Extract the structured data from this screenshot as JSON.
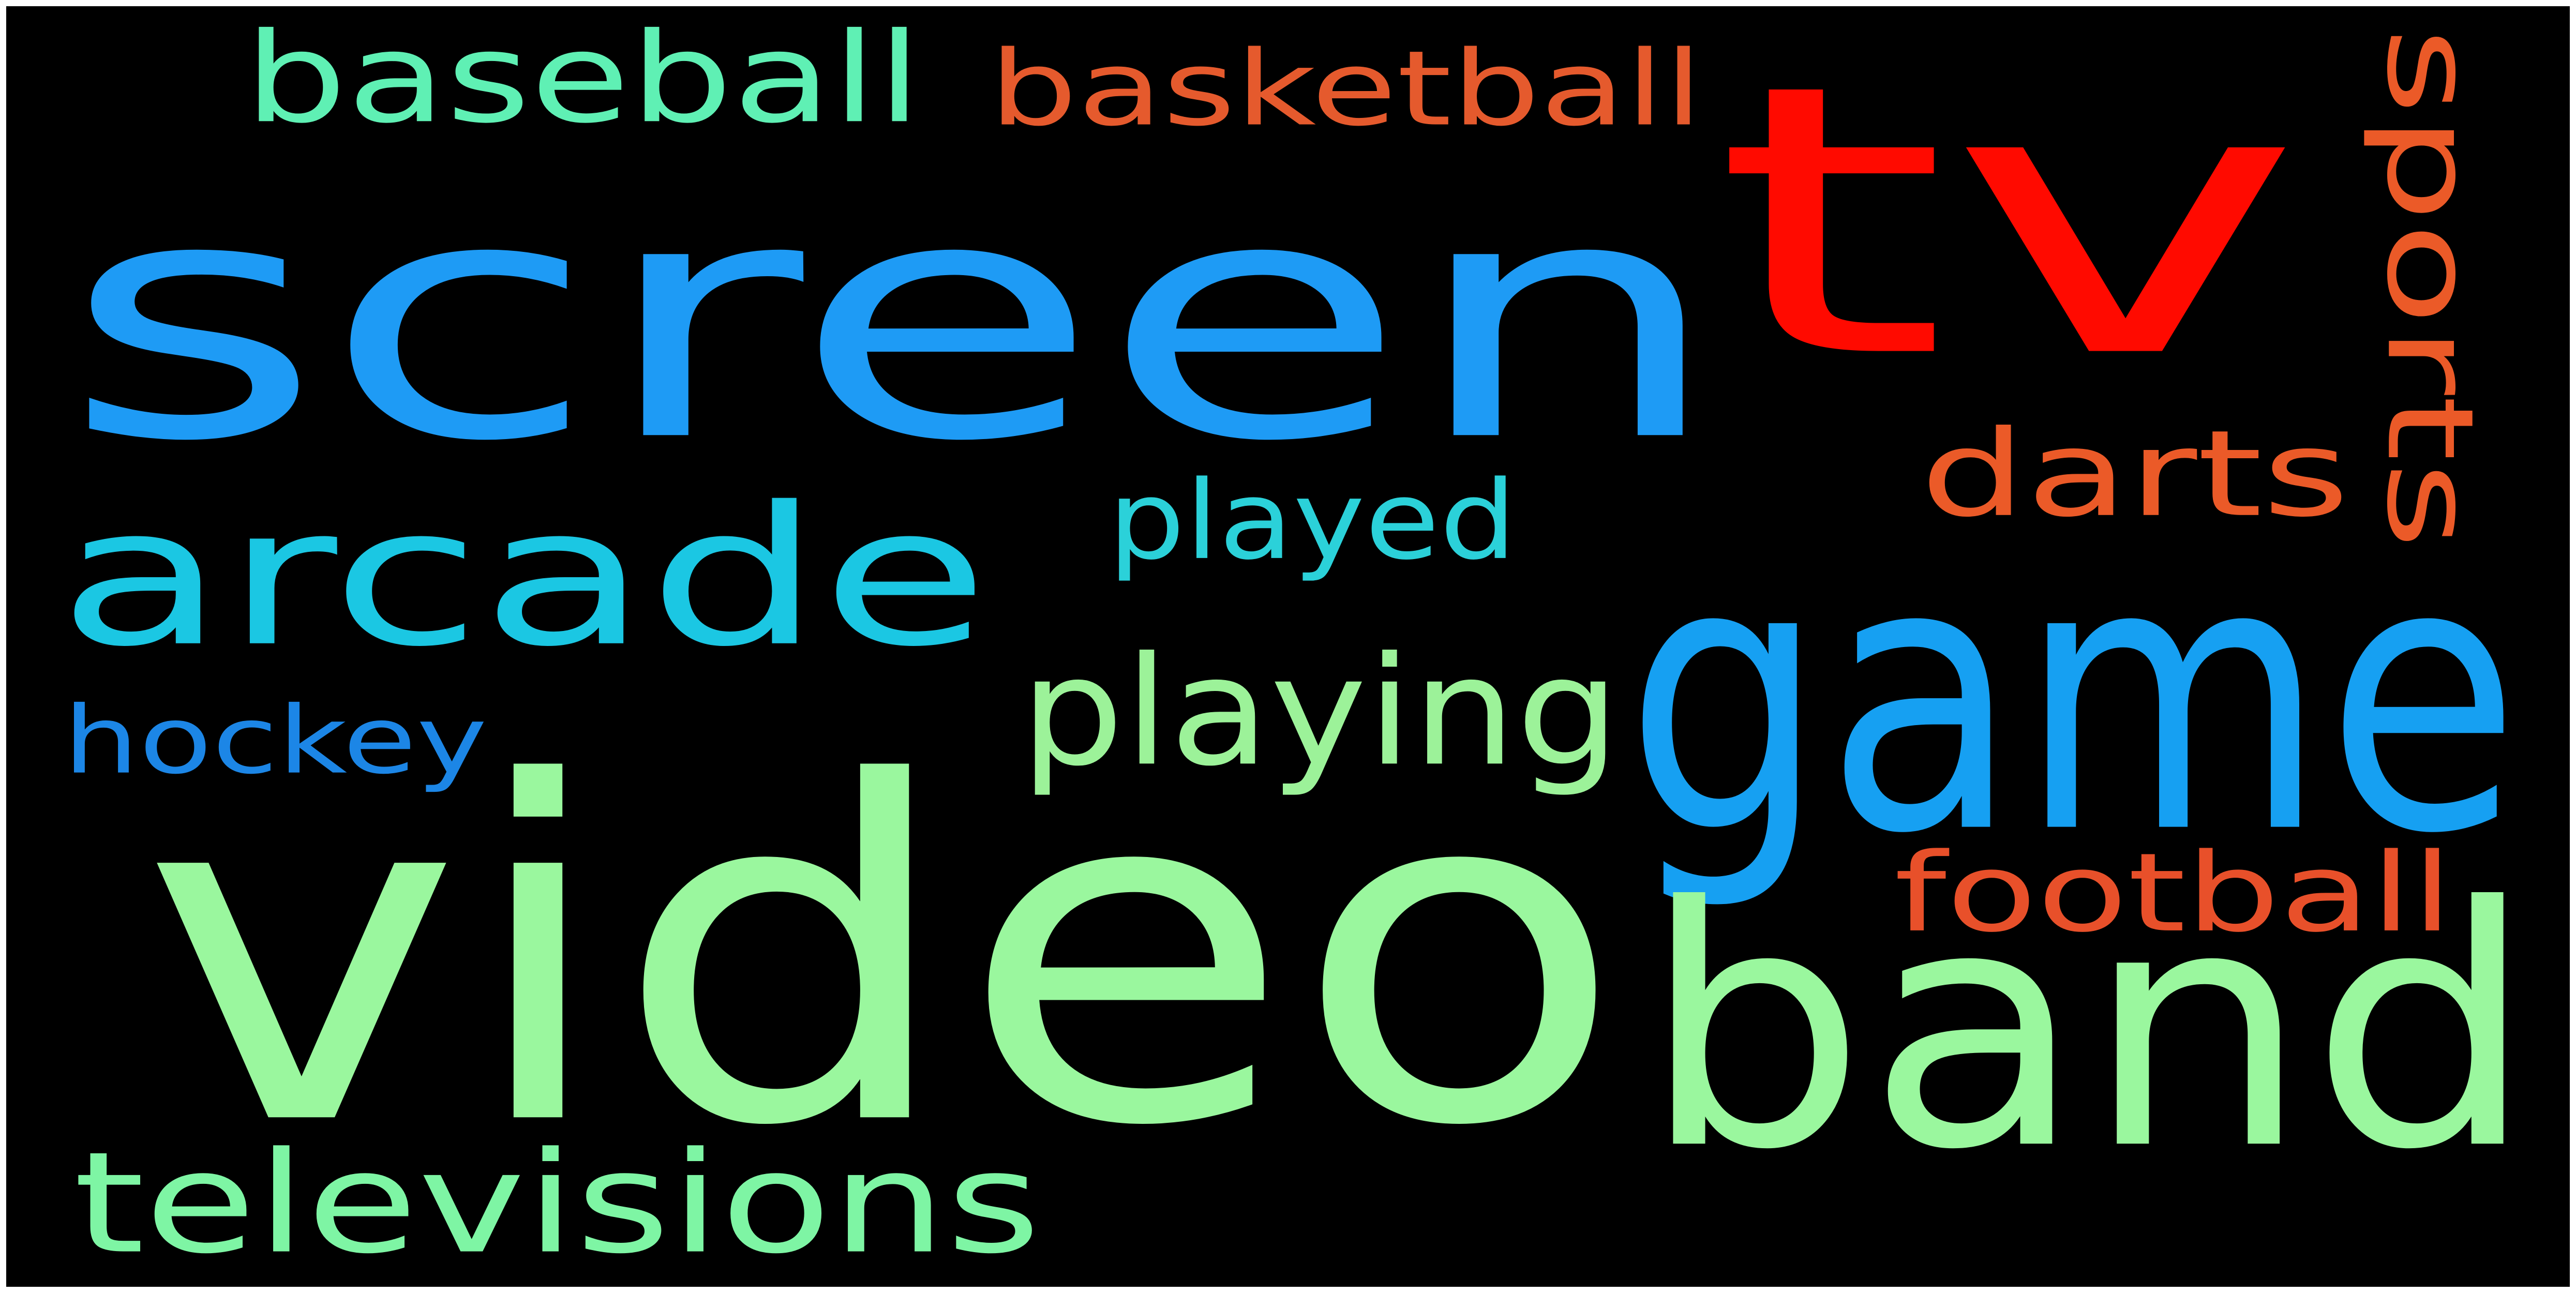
{
  "background_color": "#000000",
  "frame_color": "#ffffff",
  "words": [
    {
      "text": "screen",
      "color": "#1e9bf5"
    },
    {
      "text": "tv",
      "color": "#ff0a00"
    },
    {
      "text": "video",
      "color": "#9af79e"
    },
    {
      "text": "game",
      "color": "#16a0f2"
    },
    {
      "text": "band",
      "color": "#9af79e"
    },
    {
      "text": "arcade",
      "color": "#1bc7e3"
    },
    {
      "text": "baseball",
      "color": "#5ff0b4"
    },
    {
      "text": "basketball",
      "color": "#e55a2d"
    },
    {
      "text": "sports",
      "color": "#eb5a28"
    },
    {
      "text": "darts",
      "color": "#eb5a28"
    },
    {
      "text": "played",
      "color": "#2bd1d9"
    },
    {
      "text": "playing",
      "color": "#9cf299"
    },
    {
      "text": "hockey",
      "color": "#1c86e6"
    },
    {
      "text": "football",
      "color": "#e8502a"
    },
    {
      "text": "televisions",
      "color": "#7ef5a4"
    }
  ]
}
